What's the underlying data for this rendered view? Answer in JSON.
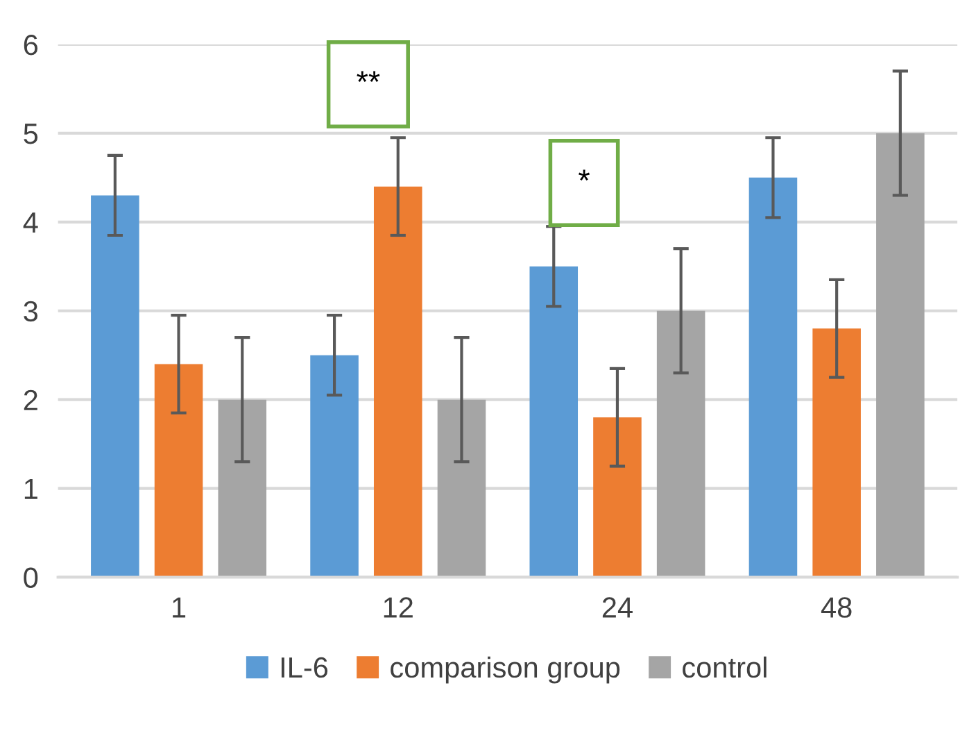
{
  "chart_data": {
    "type": "bar",
    "categories": [
      "1",
      "12",
      "24",
      "48"
    ],
    "series": [
      {
        "name": "IL-6",
        "color": "#5b9bd5",
        "values": [
          4.3,
          2.5,
          3.5,
          4.5
        ],
        "errors": [
          0.45,
          0.45,
          0.45,
          0.45
        ]
      },
      {
        "name": "comparison group",
        "color": "#ed7d31",
        "values": [
          2.4,
          4.4,
          1.8,
          2.8
        ],
        "errors": [
          0.55,
          0.55,
          0.55,
          0.55
        ]
      },
      {
        "name": "control",
        "color": "#a5a5a5",
        "values": [
          2.0,
          2.0,
          3.0,
          5.0
        ],
        "errors": [
          0.7,
          0.7,
          0.7,
          0.7
        ]
      }
    ],
    "ylim": [
      0,
      6
    ],
    "yticks": [
      0,
      1,
      2,
      3,
      4,
      5,
      6
    ],
    "grid": "y",
    "legend": "bottom",
    "annotations": [
      "**",
      "*"
    ]
  }
}
